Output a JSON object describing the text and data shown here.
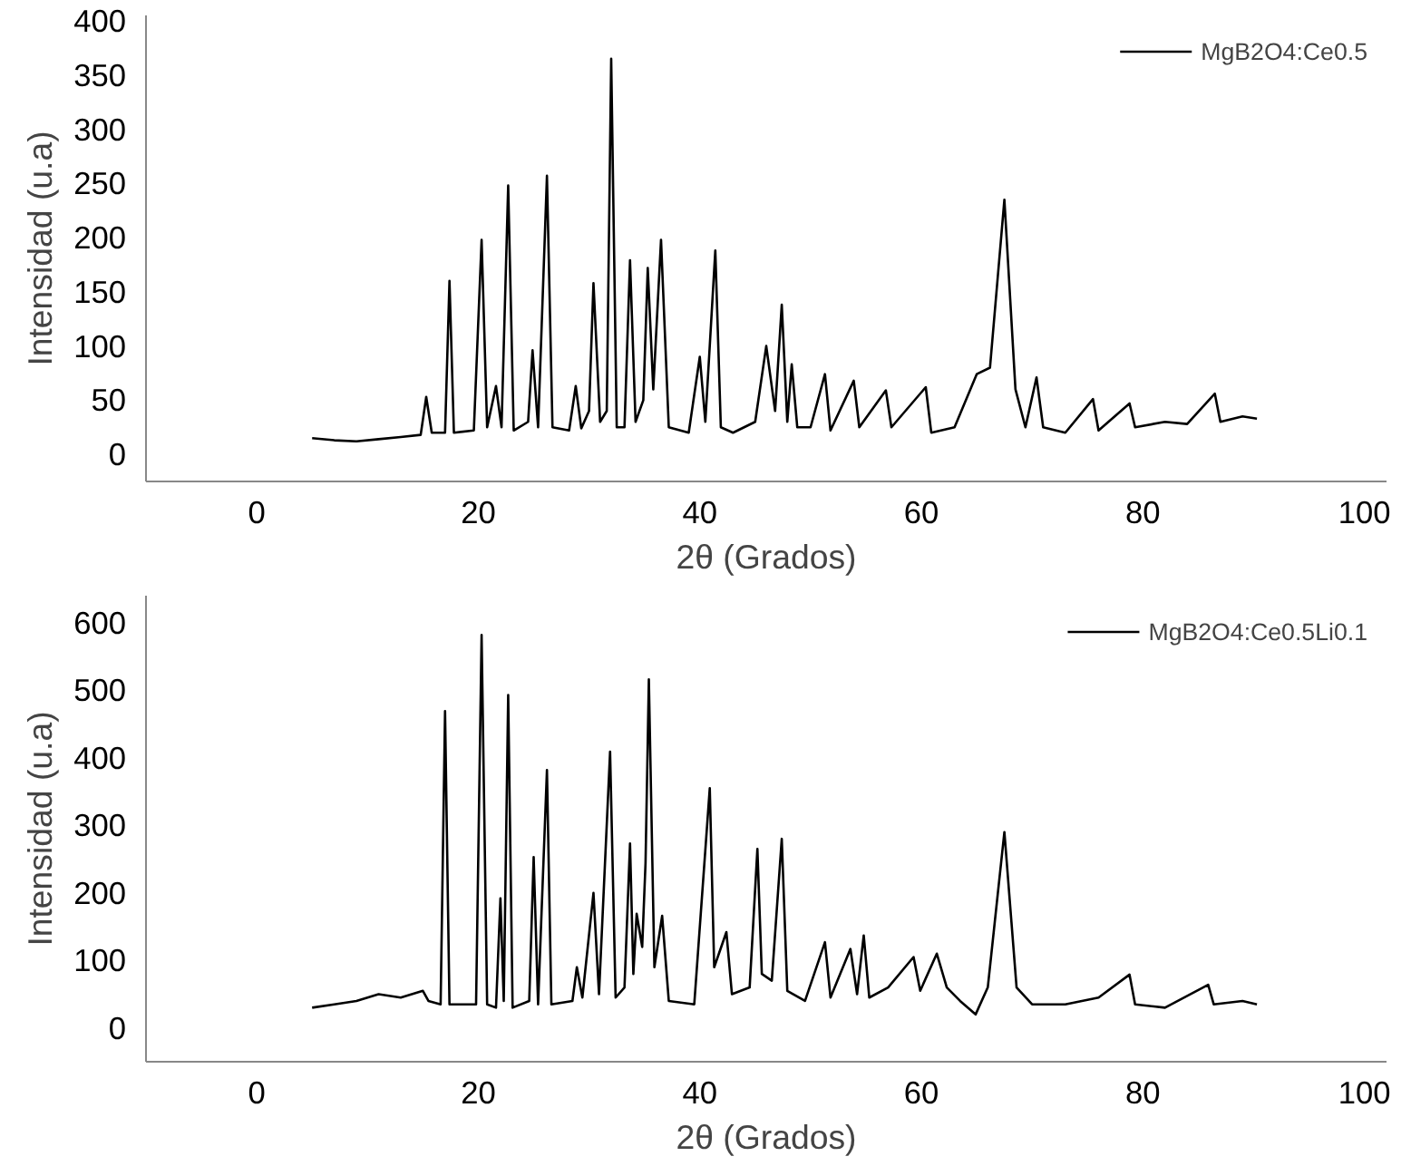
{
  "chart_data": [
    {
      "type": "line",
      "xlabel": "2θ (Grados)",
      "ylabel": "Intensidad (u.a)",
      "xlim": [
        -10,
        102
      ],
      "ylim": [
        -25,
        405
      ],
      "xticks": [
        0,
        20,
        40,
        60,
        80,
        100
      ],
      "yticks": [
        0,
        50,
        100,
        150,
        200,
        250,
        300,
        350,
        400
      ],
      "grid": false,
      "legend": "top right",
      "marker": "none",
      "line_style": "solid",
      "series": [
        {
          "name": "MgB2O4:Ce0.5",
          "color": "#000000",
          "x": [
            5,
            7,
            9,
            11,
            13,
            14.8,
            15.3,
            15.8,
            17.0,
            17.4,
            17.8,
            19.6,
            20.3,
            20.8,
            21.6,
            22.1,
            22.7,
            23.2,
            24.5,
            24.9,
            25.4,
            26.2,
            26.7,
            28.2,
            28.8,
            29.3,
            30.0,
            30.4,
            31.0,
            31.6,
            32.0,
            32.5,
            33.2,
            33.7,
            34.2,
            34.9,
            35.3,
            35.8,
            36.5,
            37.2,
            39.0,
            40.0,
            40.5,
            41.4,
            41.9,
            43,
            45,
            46.0,
            46.8,
            47.4,
            47.9,
            48.3,
            48.8,
            50,
            51.3,
            51.8,
            53.9,
            54.4,
            56.8,
            57.3,
            60.4,
            60.9,
            63,
            65.0,
            66.2,
            67.5,
            68.5,
            69.4,
            70.4,
            71,
            73,
            75.5,
            76,
            78.8,
            79.3,
            82,
            84,
            86.5,
            87,
            89,
            90.3
          ],
          "values": [
            15,
            13,
            12,
            14,
            16,
            18,
            53,
            20,
            20,
            160,
            20,
            22,
            198,
            25,
            63,
            25,
            248,
            22,
            30,
            96,
            25,
            257,
            25,
            22,
            63,
            24,
            40,
            158,
            30,
            40,
            365,
            25,
            25,
            179,
            30,
            50,
            172,
            60,
            198,
            25,
            20,
            90,
            30,
            188,
            25,
            20,
            30,
            100,
            40,
            138,
            30,
            83,
            25,
            25,
            74,
            22,
            68,
            25,
            59,
            25,
            62,
            20,
            25,
            74,
            80,
            235,
            60,
            25,
            71,
            25,
            20,
            51,
            22,
            47,
            25,
            30,
            28,
            56,
            30,
            35,
            33
          ]
        }
      ]
    },
    {
      "type": "line",
      "xlabel": "2θ (Grados)",
      "ylabel": "Intensidad (u.a)",
      "xlim": [
        -10,
        102
      ],
      "ylim": [
        -50,
        640
      ],
      "xticks": [
        0,
        20,
        40,
        60,
        80,
        100
      ],
      "yticks": [
        0,
        100,
        200,
        300,
        400,
        500,
        600
      ],
      "grid": false,
      "legend": "top right",
      "marker": "none",
      "line_style": "solid",
      "series": [
        {
          "name": "MgB2O4:Ce0.5Li0.1",
          "color": "#000000",
          "x": [
            5,
            7,
            9,
            11,
            13,
            15.0,
            15.5,
            16.6,
            17.0,
            17.4,
            19.8,
            20.3,
            20.8,
            21.6,
            22.0,
            22.3,
            22.7,
            23.1,
            24.6,
            25.0,
            25.4,
            26.2,
            26.6,
            28.5,
            28.9,
            29.4,
            30.4,
            30.9,
            31.9,
            32.4,
            33.2,
            33.7,
            34.0,
            34.3,
            34.8,
            35.1,
            35.4,
            35.9,
            36.6,
            37.2,
            39.5,
            40.9,
            41.3,
            42.4,
            42.9,
            44.5,
            45.2,
            45.6,
            46.5,
            47.4,
            47.9,
            49.5,
            51.3,
            51.8,
            53.6,
            54.2,
            54.8,
            55.3,
            57,
            59.3,
            59.9,
            61.4,
            62.3,
            63.5,
            64.9,
            66.0,
            67.5,
            68.6,
            70,
            73,
            76,
            78.8,
            79.3,
            82,
            85.9,
            86.4,
            89,
            90.3
          ],
          "values": [
            30,
            35,
            40,
            50,
            45,
            55,
            40,
            35,
            469,
            35,
            35,
            582,
            35,
            30,
            192,
            40,
            493,
            30,
            40,
            253,
            35,
            382,
            35,
            40,
            90,
            45,
            200,
            50,
            409,
            45,
            60,
            273,
            80,
            169,
            120,
            244,
            516,
            90,
            166,
            40,
            35,
            355,
            90,
            142,
            50,
            60,
            265,
            80,
            70,
            280,
            55,
            40,
            127,
            45,
            117,
            50,
            137,
            45,
            60,
            105,
            55,
            110,
            60,
            40,
            20,
            60,
            290,
            60,
            35,
            35,
            45,
            79,
            35,
            30,
            64,
            35,
            40,
            35
          ]
        }
      ]
    }
  ]
}
